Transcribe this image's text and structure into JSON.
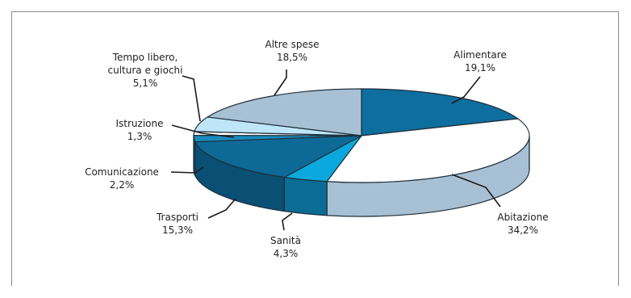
{
  "chart_data": {
    "type": "pie",
    "title": "",
    "slices": [
      {
        "label": "Alimentare",
        "value_label": "19,1%",
        "value": 19.1,
        "color": "#0e6e9d",
        "dark": "#0a5377"
      },
      {
        "label": "Abitazione",
        "value_label": "34,2%",
        "value": 34.2,
        "color": "#ffffff",
        "dark": "#a8c0d3"
      },
      {
        "label": "Sanità",
        "value_label": "4,3%",
        "value": 4.3,
        "color": "#0aa8dc",
        "dark": "#0b6c96"
      },
      {
        "label": "Trasporti",
        "value_label": "15,3%",
        "value": 15.3,
        "color": "#0d6a97",
        "dark": "#0a4f74"
      },
      {
        "label": "Comunicazione",
        "value_label": "2,2%",
        "value": 2.2,
        "color": "#1a8bbd",
        "dark": "#0e5f86"
      },
      {
        "label": "Istruzione",
        "value_label": "1,3%",
        "value": 1.3,
        "color": "#ffffff",
        "dark": "#b9d0de"
      },
      {
        "label": "Tempo libero, cultura e giochi",
        "label_lines": [
          "Tempo libero,",
          "cultura e giochi"
        ],
        "value_label": "5,1%",
        "value": 5.1,
        "color": "#bfe5f8",
        "dark": "#84b6cf"
      },
      {
        "label": "Altre spese",
        "value_label": "18,5%",
        "value": 18.5,
        "color": "#a8c0d3",
        "dark": "#7f9db3"
      }
    ]
  }
}
